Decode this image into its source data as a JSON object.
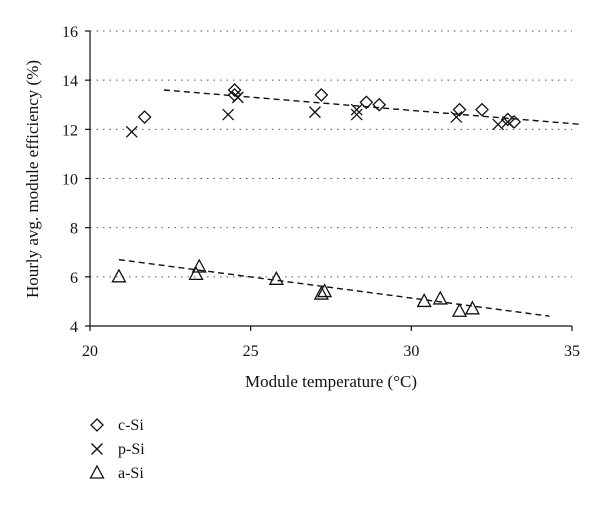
{
  "chart_data": {
    "type": "scatter",
    "xlabel": "Module temperature (°C)",
    "ylabel": "Hourly avg. module efficiency (%)",
    "xlim": [
      20,
      35
    ],
    "ylim": [
      4,
      16
    ],
    "xticks": [
      "20",
      "25",
      "30",
      "35"
    ],
    "yticks": [
      "4",
      "6",
      "8",
      "10",
      "12",
      "14",
      "16"
    ],
    "grid": "horizontal dotted",
    "legend_position": "bottom-left",
    "series": [
      {
        "name": "c-Si",
        "marker": "diamond",
        "points": [
          [
            21.7,
            12.5
          ],
          [
            24.5,
            13.6
          ],
          [
            24.5,
            13.4
          ],
          [
            27.2,
            13.4
          ],
          [
            28.6,
            13.1
          ],
          [
            29.0,
            13.0
          ],
          [
            31.5,
            12.8
          ],
          [
            32.2,
            12.8
          ],
          [
            33.0,
            12.4
          ],
          [
            33.2,
            12.3
          ]
        ]
      },
      {
        "name": "p-Si",
        "marker": "x",
        "points": [
          [
            21.3,
            11.9
          ],
          [
            24.3,
            12.6
          ],
          [
            24.6,
            13.3
          ],
          [
            27.0,
            12.7
          ],
          [
            28.3,
            12.6
          ],
          [
            28.3,
            12.8
          ],
          [
            31.4,
            12.5
          ],
          [
            32.7,
            12.2
          ],
          [
            33.0,
            12.3
          ]
        ]
      },
      {
        "name": "a-Si",
        "marker": "triangle",
        "points": [
          [
            20.9,
            6.0
          ],
          [
            23.3,
            6.1
          ],
          [
            23.4,
            6.4
          ],
          [
            25.8,
            5.9
          ],
          [
            27.2,
            5.3
          ],
          [
            27.3,
            5.4
          ],
          [
            30.4,
            5.0
          ],
          [
            30.9,
            5.1
          ],
          [
            31.5,
            4.6
          ],
          [
            31.9,
            4.7
          ]
        ]
      }
    ],
    "trendlines": [
      {
        "series": "c-Si/p-Si",
        "x": [
          22.3,
          35.3
        ],
        "y": [
          13.6,
          12.2
        ]
      },
      {
        "series": "a-Si",
        "x": [
          20.9,
          34.3
        ],
        "y": [
          6.7,
          4.4
        ]
      }
    ]
  }
}
